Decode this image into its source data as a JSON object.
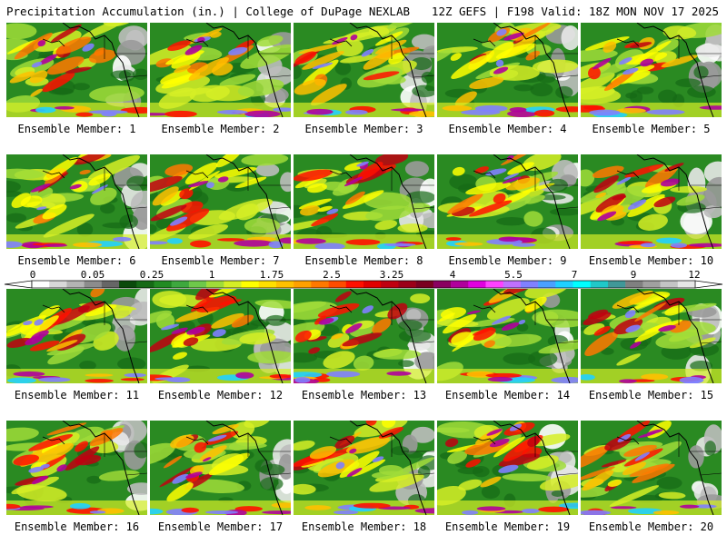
{
  "header": {
    "left": "Precipitation Accumulation (in.) | College of DuPage NEXLAB",
    "right": "12Z GEFS | F198 Valid: 18Z MON NOV 17 2025"
  },
  "panels": [
    {
      "label": "Ensemble Member: 1"
    },
    {
      "label": "Ensemble Member: 2"
    },
    {
      "label": "Ensemble Member: 3"
    },
    {
      "label": "Ensemble Member: 4"
    },
    {
      "label": "Ensemble Member: 5"
    },
    {
      "label": "Ensemble Member: 6"
    },
    {
      "label": "Ensemble Member: 7"
    },
    {
      "label": "Ensemble Member: 8"
    },
    {
      "label": "Ensemble Member: 9"
    },
    {
      "label": "Ensemble Member: 10"
    },
    {
      "label": "Ensemble Member: 11"
    },
    {
      "label": "Ensemble Member: 12"
    },
    {
      "label": "Ensemble Member: 13"
    },
    {
      "label": "Ensemble Member: 14"
    },
    {
      "label": "Ensemble Member: 15"
    },
    {
      "label": "Ensemble Member: 16"
    },
    {
      "label": "Ensemble Member: 17"
    },
    {
      "label": "Ensemble Member: 18"
    },
    {
      "label": "Ensemble Member: 19"
    },
    {
      "label": "Ensemble Member: 20"
    }
  ],
  "colorbar": {
    "ticks": [
      "0",
      "0.05",
      "0.25",
      "1",
      "1.75",
      "2.5",
      "3.25",
      "4",
      "5.5",
      "7",
      "9",
      "12"
    ],
    "colors": [
      "#ffffff",
      "#d8d8d8",
      "#b4b4b4",
      "#8c8c8c",
      "#666666",
      "#0b4a0b",
      "#166a16",
      "#228b22",
      "#3ea83e",
      "#6ec84a",
      "#a0dc38",
      "#d6ee26",
      "#ffff00",
      "#ffdf00",
      "#ffc000",
      "#ffa000",
      "#ff7800",
      "#ff4c00",
      "#ff1000",
      "#e00000",
      "#c00010",
      "#9c0018",
      "#7a0020",
      "#8a0060",
      "#b0009c",
      "#e000e0",
      "#ff40ff",
      "#c070ff",
      "#8080ff",
      "#4aa0ff",
      "#20d0ff",
      "#00ffff",
      "#20c8c8",
      "#409898",
      "#808080",
      "#a0a0a0",
      "#c4c4c4",
      "#e6e6e6"
    ]
  }
}
